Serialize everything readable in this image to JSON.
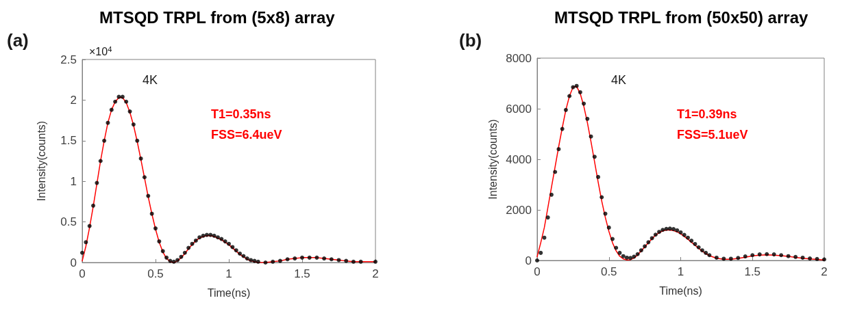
{
  "chart_data": [
    {
      "type": "scatter",
      "title": "MTSQD TRPL from (5x8) array",
      "xlabel": "Time(ns)",
      "ylabel": "Intensity(counts)",
      "annotations": [
        "(a)",
        "×10$^{4}$",
        "4K",
        "T1=0.35ns",
        "FSS=6.4ueV"
      ],
      "x": [
        0,
        0.025,
        0.05,
        0.075,
        0.1,
        0.125,
        0.15,
        0.175,
        0.2,
        0.225,
        0.25,
        0.275,
        0.3,
        0.325,
        0.35,
        0.375,
        0.4,
        0.425,
        0.45,
        0.475,
        0.5,
        0.525,
        0.55,
        0.575,
        0.6,
        0.625,
        0.65,
        0.675,
        0.7,
        0.725,
        0.75,
        0.775,
        0.8,
        0.825,
        0.85,
        0.875,
        0.9,
        0.925,
        0.95,
        0.975,
        1.0,
        1.025,
        1.05,
        1.075,
        1.1,
        1.125,
        1.15,
        1.175,
        1.2,
        1.25,
        1.3,
        1.35,
        1.4,
        1.45,
        1.5,
        1.55,
        1.6,
        1.65,
        1.7,
        1.75,
        1.8,
        1.85,
        1.9,
        2.0
      ],
      "series": [
        {
          "color": "#000000",
          "values": [
            0.12,
            0.25,
            0.45,
            0.7,
            0.98,
            1.25,
            1.5,
            1.72,
            1.88,
            1.98,
            2.04,
            2.04,
            1.98,
            1.86,
            1.7,
            1.5,
            1.28,
            1.05,
            0.82,
            0.6,
            0.42,
            0.26,
            0.14,
            0.06,
            0.02,
            0.01,
            0.03,
            0.07,
            0.12,
            0.18,
            0.23,
            0.27,
            0.31,
            0.33,
            0.34,
            0.34,
            0.33,
            0.31,
            0.29,
            0.26,
            0.23,
            0.19,
            0.15,
            0.11,
            0.08,
            0.05,
            0.03,
            0.02,
            0.01,
            0.0,
            0.01,
            0.02,
            0.04,
            0.05,
            0.06,
            0.06,
            0.06,
            0.05,
            0.04,
            0.03,
            0.02,
            0.01,
            0.01,
            0.01
          ]
        },
        {
          "type": "line",
          "marker": "none",
          "color": "#ff0000",
          "values": [
            0.02,
            0.2,
            0.43,
            0.69,
            0.97,
            1.25,
            1.5,
            1.72,
            1.88,
            1.98,
            2.03,
            2.03,
            1.97,
            1.85,
            1.69,
            1.49,
            1.27,
            1.04,
            0.81,
            0.6,
            0.41,
            0.25,
            0.13,
            0.05,
            0.01,
            0.0,
            0.02,
            0.06,
            0.11,
            0.17,
            0.22,
            0.27,
            0.3,
            0.32,
            0.33,
            0.33,
            0.32,
            0.3,
            0.28,
            0.25,
            0.22,
            0.18,
            0.14,
            0.1,
            0.07,
            0.04,
            0.02,
            0.01,
            0.0,
            0.0,
            0.01,
            0.02,
            0.04,
            0.05,
            0.06,
            0.06,
            0.06,
            0.05,
            0.04,
            0.03,
            0.02,
            0.01,
            0.01,
            0.01
          ]
        }
      ],
      "xlim": [
        0,
        2
      ],
      "xticks": [
        0,
        0.5,
        1,
        1.5,
        2
      ],
      "ylim": [
        0,
        2.5
      ],
      "yticks": [
        0,
        0.5,
        1,
        1.5,
        2,
        2.5
      ],
      "grid": false,
      "marker": "circle",
      "line_style": "solid"
    },
    {
      "type": "scatter",
      "title": "MTSQD TRPL from (50x50) array",
      "xlabel": "Time(ns)",
      "ylabel": "Intensity(counts)",
      "annotations": [
        "(b)",
        "4K",
        "T1=0.39ns",
        "FSS=5.1ueV"
      ],
      "x": [
        0,
        0.025,
        0.05,
        0.075,
        0.1,
        0.125,
        0.15,
        0.175,
        0.2,
        0.225,
        0.25,
        0.275,
        0.3,
        0.325,
        0.35,
        0.375,
        0.4,
        0.425,
        0.45,
        0.475,
        0.5,
        0.525,
        0.55,
        0.575,
        0.6,
        0.625,
        0.65,
        0.675,
        0.7,
        0.725,
        0.75,
        0.775,
        0.8,
        0.825,
        0.85,
        0.875,
        0.9,
        0.925,
        0.95,
        0.975,
        1.0,
        1.025,
        1.05,
        1.075,
        1.1,
        1.125,
        1.15,
        1.175,
        1.2,
        1.25,
        1.3,
        1.35,
        1.4,
        1.45,
        1.5,
        1.55,
        1.6,
        1.65,
        1.7,
        1.75,
        1.8,
        1.85,
        1.9,
        1.95,
        2.0
      ],
      "series": [
        {
          "color": "#000000",
          "values": [
            0,
            300,
            900,
            1700,
            2600,
            3500,
            4400,
            5200,
            5950,
            6500,
            6850,
            6900,
            6650,
            6200,
            5600,
            4900,
            4100,
            3300,
            2500,
            1850,
            1300,
            850,
            500,
            300,
            170,
            110,
            100,
            150,
            250,
            400,
            560,
            720,
            880,
            1020,
            1130,
            1210,
            1250,
            1260,
            1240,
            1190,
            1110,
            1010,
            900,
            780,
            650,
            520,
            400,
            300,
            210,
            110,
            70,
            70,
            100,
            160,
            210,
            240,
            250,
            240,
            210,
            170,
            140,
            110,
            80,
            60,
            40
          ]
        },
        {
          "type": "line",
          "marker": "none",
          "color": "#ff0000",
          "values": [
            150,
            700,
            1300,
            2100,
            2900,
            3700,
            4500,
            5250,
            5950,
            6500,
            6850,
            6880,
            6600,
            6100,
            5450,
            4700,
            3900,
            3100,
            2350,
            1700,
            1150,
            700,
            380,
            170,
            60,
            20,
            30,
            100,
            220,
            380,
            540,
            700,
            860,
            1000,
            1100,
            1170,
            1200,
            1200,
            1180,
            1130,
            1050,
            950,
            840,
            720,
            600,
            480,
            370,
            270,
            190,
            90,
            50,
            50,
            80,
            130,
            180,
            210,
            220,
            210,
            190,
            160,
            120,
            90,
            60,
            40,
            20
          ]
        }
      ],
      "xlim": [
        0,
        2
      ],
      "xticks": [
        0,
        0.5,
        1,
        1.5,
        2
      ],
      "ylim": [
        0,
        8000
      ],
      "yticks": [
        0,
        2000,
        4000,
        6000,
        8000
      ],
      "grid": false,
      "marker": "circle",
      "line_style": "solid"
    }
  ]
}
